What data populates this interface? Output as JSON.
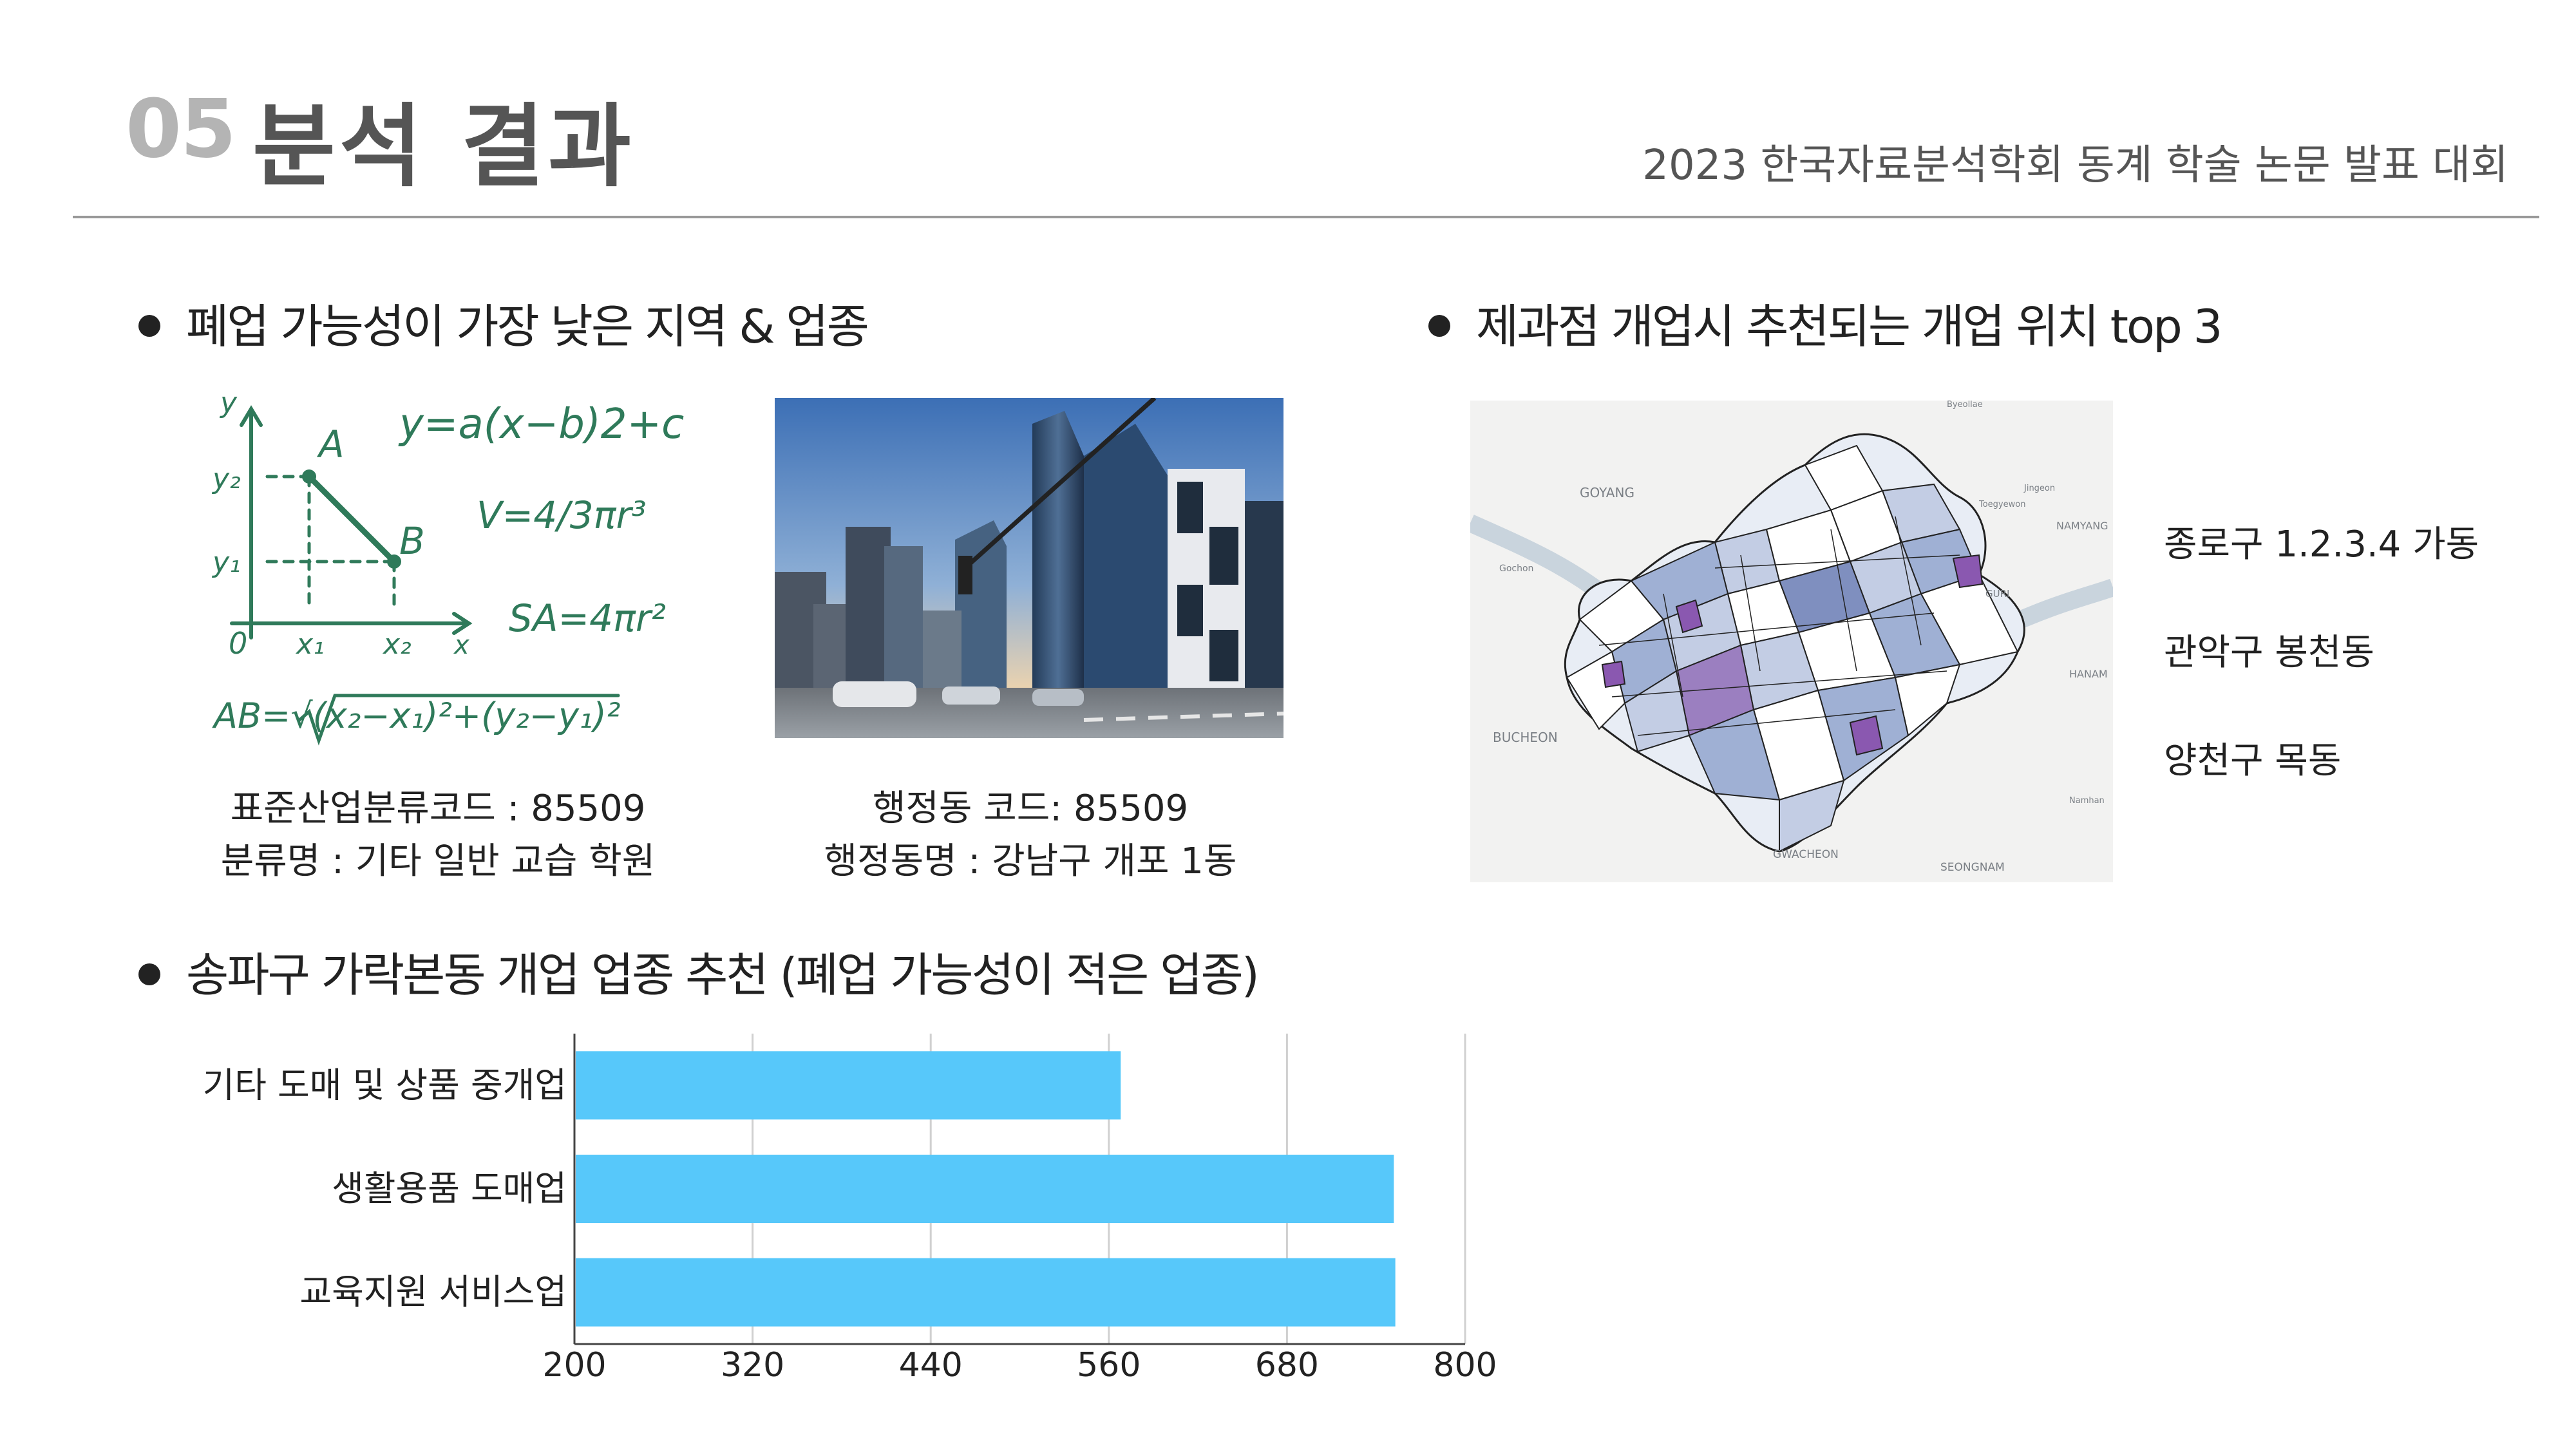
{
  "header": {
    "section_number": "05",
    "title": "분석 결과",
    "conference": "2023 한국자료분석학회 동계 학술 논문 발표 대회"
  },
  "section1": {
    "heading": "폐업 가능성이 가장 낮은 지역 & 업종",
    "industry_code_line": "표준산업분류코드 : 85509",
    "industry_name_line": "분류명 : 기타 일반 교습 학원",
    "admin_code_line": "행정동 코드: 85509",
    "admin_name_line": "행정동명 : 강남구 개포 1동"
  },
  "section2": {
    "heading": "제과점 개업시 추천되는 개업 위치 top 3",
    "locations": [
      "종로구 1.2.3.4 가동",
      "관악구 봉천동",
      "양천구 목동"
    ],
    "map_labels": {
      "goyang": "GOYANG",
      "bucheon": "BUCHEON",
      "gwacheon": "GWACHEON",
      "seongnam": "SEONGNAM",
      "namyang": "NAMYANG",
      "hanam": "HANAM",
      "uijeongbu": "Byeollae",
      "jingeon": "Jingeon",
      "toegyewon": "Toegyewon",
      "gochon": "Gochon",
      "guri": "GURI",
      "namhansan": "Namhan"
    }
  },
  "section3": {
    "heading": "송파구 가락본동 개업 업종 추천 (폐업 가능성이 적은 업종)"
  },
  "chart_data": {
    "type": "bar",
    "orientation": "horizontal",
    "categories": [
      "기타 도매 및 상품 중개업",
      "생활용품 도매업",
      "교육지원 서비스업"
    ],
    "values": [
      568,
      752,
      753
    ],
    "xlim": [
      200,
      800
    ],
    "xticks": [
      200,
      320,
      440,
      560,
      680,
      800
    ],
    "bar_color": "#57c8fa",
    "grid": true
  },
  "math_image": {
    "formula_parabola": "y=a(x−b)2+c",
    "formula_volume": "V=4/3πr³",
    "formula_surface": "SA=4πr²",
    "formula_distance": "AB=√(x₂−x₁)²+(y₂−y₁)²",
    "point_a": "A",
    "point_b": "B",
    "axis_y": "y",
    "axis_x": "x",
    "y2": "y₂",
    "y1": "y₁",
    "x1": "x₁",
    "x2": "x₂",
    "origin": "0"
  },
  "colors": {
    "header_number": "#b4b4b4",
    "header_title": "#555555",
    "rule": "#999999",
    "chalk_green": "#2f7a5a",
    "bar": "#57c8fa"
  }
}
